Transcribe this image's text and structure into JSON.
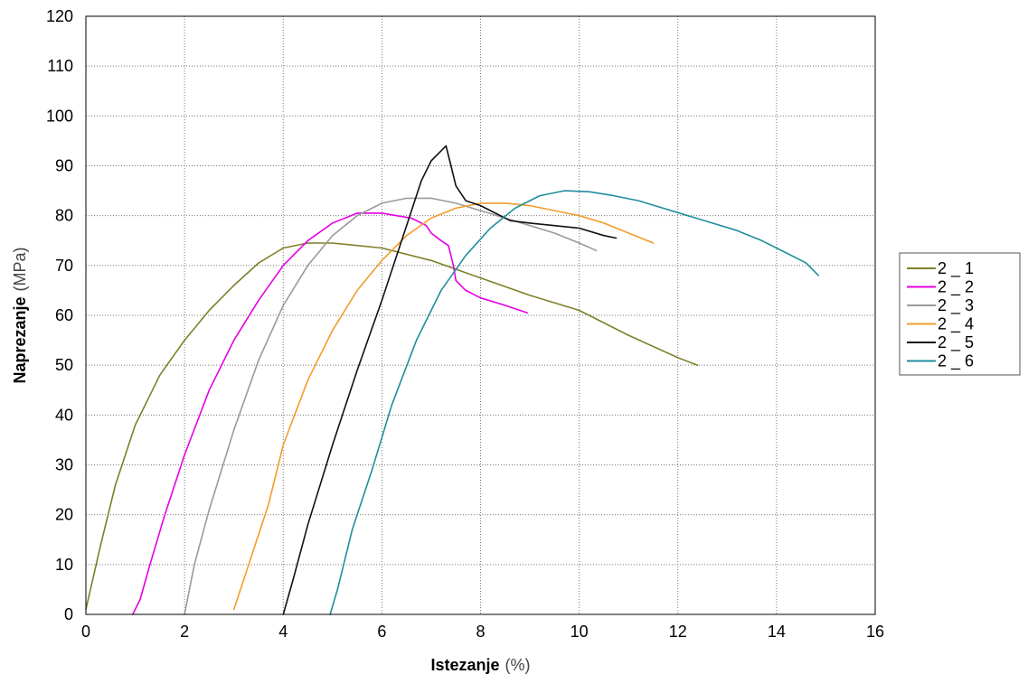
{
  "chart_data": {
    "type": "line",
    "xlabel": {
      "main": "Istezanje",
      "unit": "(%)"
    },
    "ylabel": {
      "main": "Naprezanje",
      "unit": "(MPa)"
    },
    "xlim": [
      0,
      16
    ],
    "ylim": [
      0,
      120
    ],
    "x_ticks": [
      "0",
      "2",
      "4",
      "6",
      "8",
      "10",
      "12",
      "14",
      "16"
    ],
    "y_ticks": [
      "0",
      "10",
      "20",
      "30",
      "40",
      "50",
      "60",
      "70",
      "80",
      "90",
      "100",
      "110",
      "120"
    ],
    "grid": true,
    "legend_position": "right",
    "series": [
      {
        "name": "2 _ 1",
        "color": "#7f7f2a",
        "points": [
          [
            0,
            1
          ],
          [
            0.3,
            14
          ],
          [
            0.6,
            26
          ],
          [
            1,
            38
          ],
          [
            1.5,
            48
          ],
          [
            2,
            55
          ],
          [
            2.5,
            61
          ],
          [
            3,
            66
          ],
          [
            3.5,
            70.5
          ],
          [
            4,
            73.5
          ],
          [
            4.5,
            74.5
          ],
          [
            5,
            74.5
          ],
          [
            6,
            73.5
          ],
          [
            7,
            71
          ],
          [
            8,
            67.5
          ],
          [
            9,
            64
          ],
          [
            10,
            61
          ],
          [
            11,
            56
          ],
          [
            12,
            51.5
          ],
          [
            12.4,
            50
          ]
        ]
      },
      {
        "name": "2 _ 2",
        "color": "#e400e4",
        "points": [
          [
            0.95,
            0
          ],
          [
            1.1,
            3
          ],
          [
            1.3,
            10
          ],
          [
            1.6,
            20
          ],
          [
            2,
            32
          ],
          [
            2.5,
            45
          ],
          [
            3,
            55
          ],
          [
            3.5,
            63
          ],
          [
            4,
            70
          ],
          [
            4.5,
            75
          ],
          [
            5,
            78.5
          ],
          [
            5.5,
            80.5
          ],
          [
            6,
            80.5
          ],
          [
            6.3,
            80
          ],
          [
            6.6,
            79.5
          ],
          [
            6.9,
            78
          ],
          [
            7,
            76.5
          ],
          [
            7.2,
            75
          ],
          [
            7.35,
            74
          ],
          [
            7.45,
            70
          ],
          [
            7.5,
            67
          ],
          [
            7.7,
            65
          ],
          [
            8,
            63.5
          ],
          [
            8.5,
            62
          ],
          [
            8.95,
            60.5
          ]
        ]
      },
      {
        "name": "2 _ 3",
        "color": "#9a9a9a",
        "points": [
          [
            2,
            0
          ],
          [
            2.2,
            10
          ],
          [
            2.5,
            21
          ],
          [
            3,
            37
          ],
          [
            3.5,
            51
          ],
          [
            4,
            62
          ],
          [
            4.5,
            70
          ],
          [
            5,
            76
          ],
          [
            5.5,
            80
          ],
          [
            6,
            82.5
          ],
          [
            6.5,
            83.5
          ],
          [
            7,
            83.5
          ],
          [
            7.5,
            82.5
          ],
          [
            8,
            81
          ],
          [
            8.5,
            79.5
          ],
          [
            9,
            78
          ],
          [
            9.5,
            76.5
          ],
          [
            10,
            74.5
          ],
          [
            10.35,
            73
          ]
        ]
      },
      {
        "name": "2 _ 4",
        "color": "#f39c2c",
        "points": [
          [
            3,
            1
          ],
          [
            3.3,
            10
          ],
          [
            3.7,
            22
          ],
          [
            4,
            34
          ],
          [
            4.5,
            47
          ],
          [
            5,
            57
          ],
          [
            5.5,
            65
          ],
          [
            6,
            71
          ],
          [
            6.5,
            76
          ],
          [
            7,
            79.5
          ],
          [
            7.5,
            81.5
          ],
          [
            8,
            82.5
          ],
          [
            8.5,
            82.5
          ],
          [
            9,
            82
          ],
          [
            9.5,
            81
          ],
          [
            10,
            80
          ],
          [
            10.5,
            78.5
          ],
          [
            11,
            76.5
          ],
          [
            11.5,
            74.5
          ]
        ]
      },
      {
        "name": "2 _ 5",
        "color": "#111111",
        "points": [
          [
            4,
            0
          ],
          [
            4.2,
            7
          ],
          [
            4.5,
            18
          ],
          [
            5,
            34
          ],
          [
            5.5,
            49
          ],
          [
            6,
            63
          ],
          [
            6.5,
            78
          ],
          [
            6.8,
            87
          ],
          [
            7,
            91
          ],
          [
            7.2,
            93
          ],
          [
            7.3,
            94
          ],
          [
            7.4,
            90
          ],
          [
            7.5,
            86
          ],
          [
            7.7,
            83
          ],
          [
            8,
            82
          ],
          [
            8.3,
            80.5
          ],
          [
            8.6,
            79
          ],
          [
            9,
            78.5
          ],
          [
            9.5,
            78
          ],
          [
            10,
            77.5
          ],
          [
            10.5,
            76
          ],
          [
            10.75,
            75.5
          ]
        ]
      },
      {
        "name": "2 _ 6",
        "color": "#1f8e9e",
        "points": [
          [
            4.95,
            0
          ],
          [
            5.1,
            5
          ],
          [
            5.4,
            17
          ],
          [
            5.8,
            29
          ],
          [
            6.2,
            42
          ],
          [
            6.7,
            55
          ],
          [
            7.2,
            65
          ],
          [
            7.7,
            72
          ],
          [
            8.2,
            77.5
          ],
          [
            8.7,
            81.5
          ],
          [
            9.2,
            84
          ],
          [
            9.7,
            85
          ],
          [
            10.2,
            84.8
          ],
          [
            10.7,
            84
          ],
          [
            11.2,
            83
          ],
          [
            11.7,
            81.5
          ],
          [
            12.2,
            80
          ],
          [
            12.7,
            78.5
          ],
          [
            13.2,
            77
          ],
          [
            13.7,
            75
          ],
          [
            14.2,
            72.5
          ],
          [
            14.6,
            70.5
          ],
          [
            14.85,
            68
          ]
        ]
      }
    ]
  }
}
